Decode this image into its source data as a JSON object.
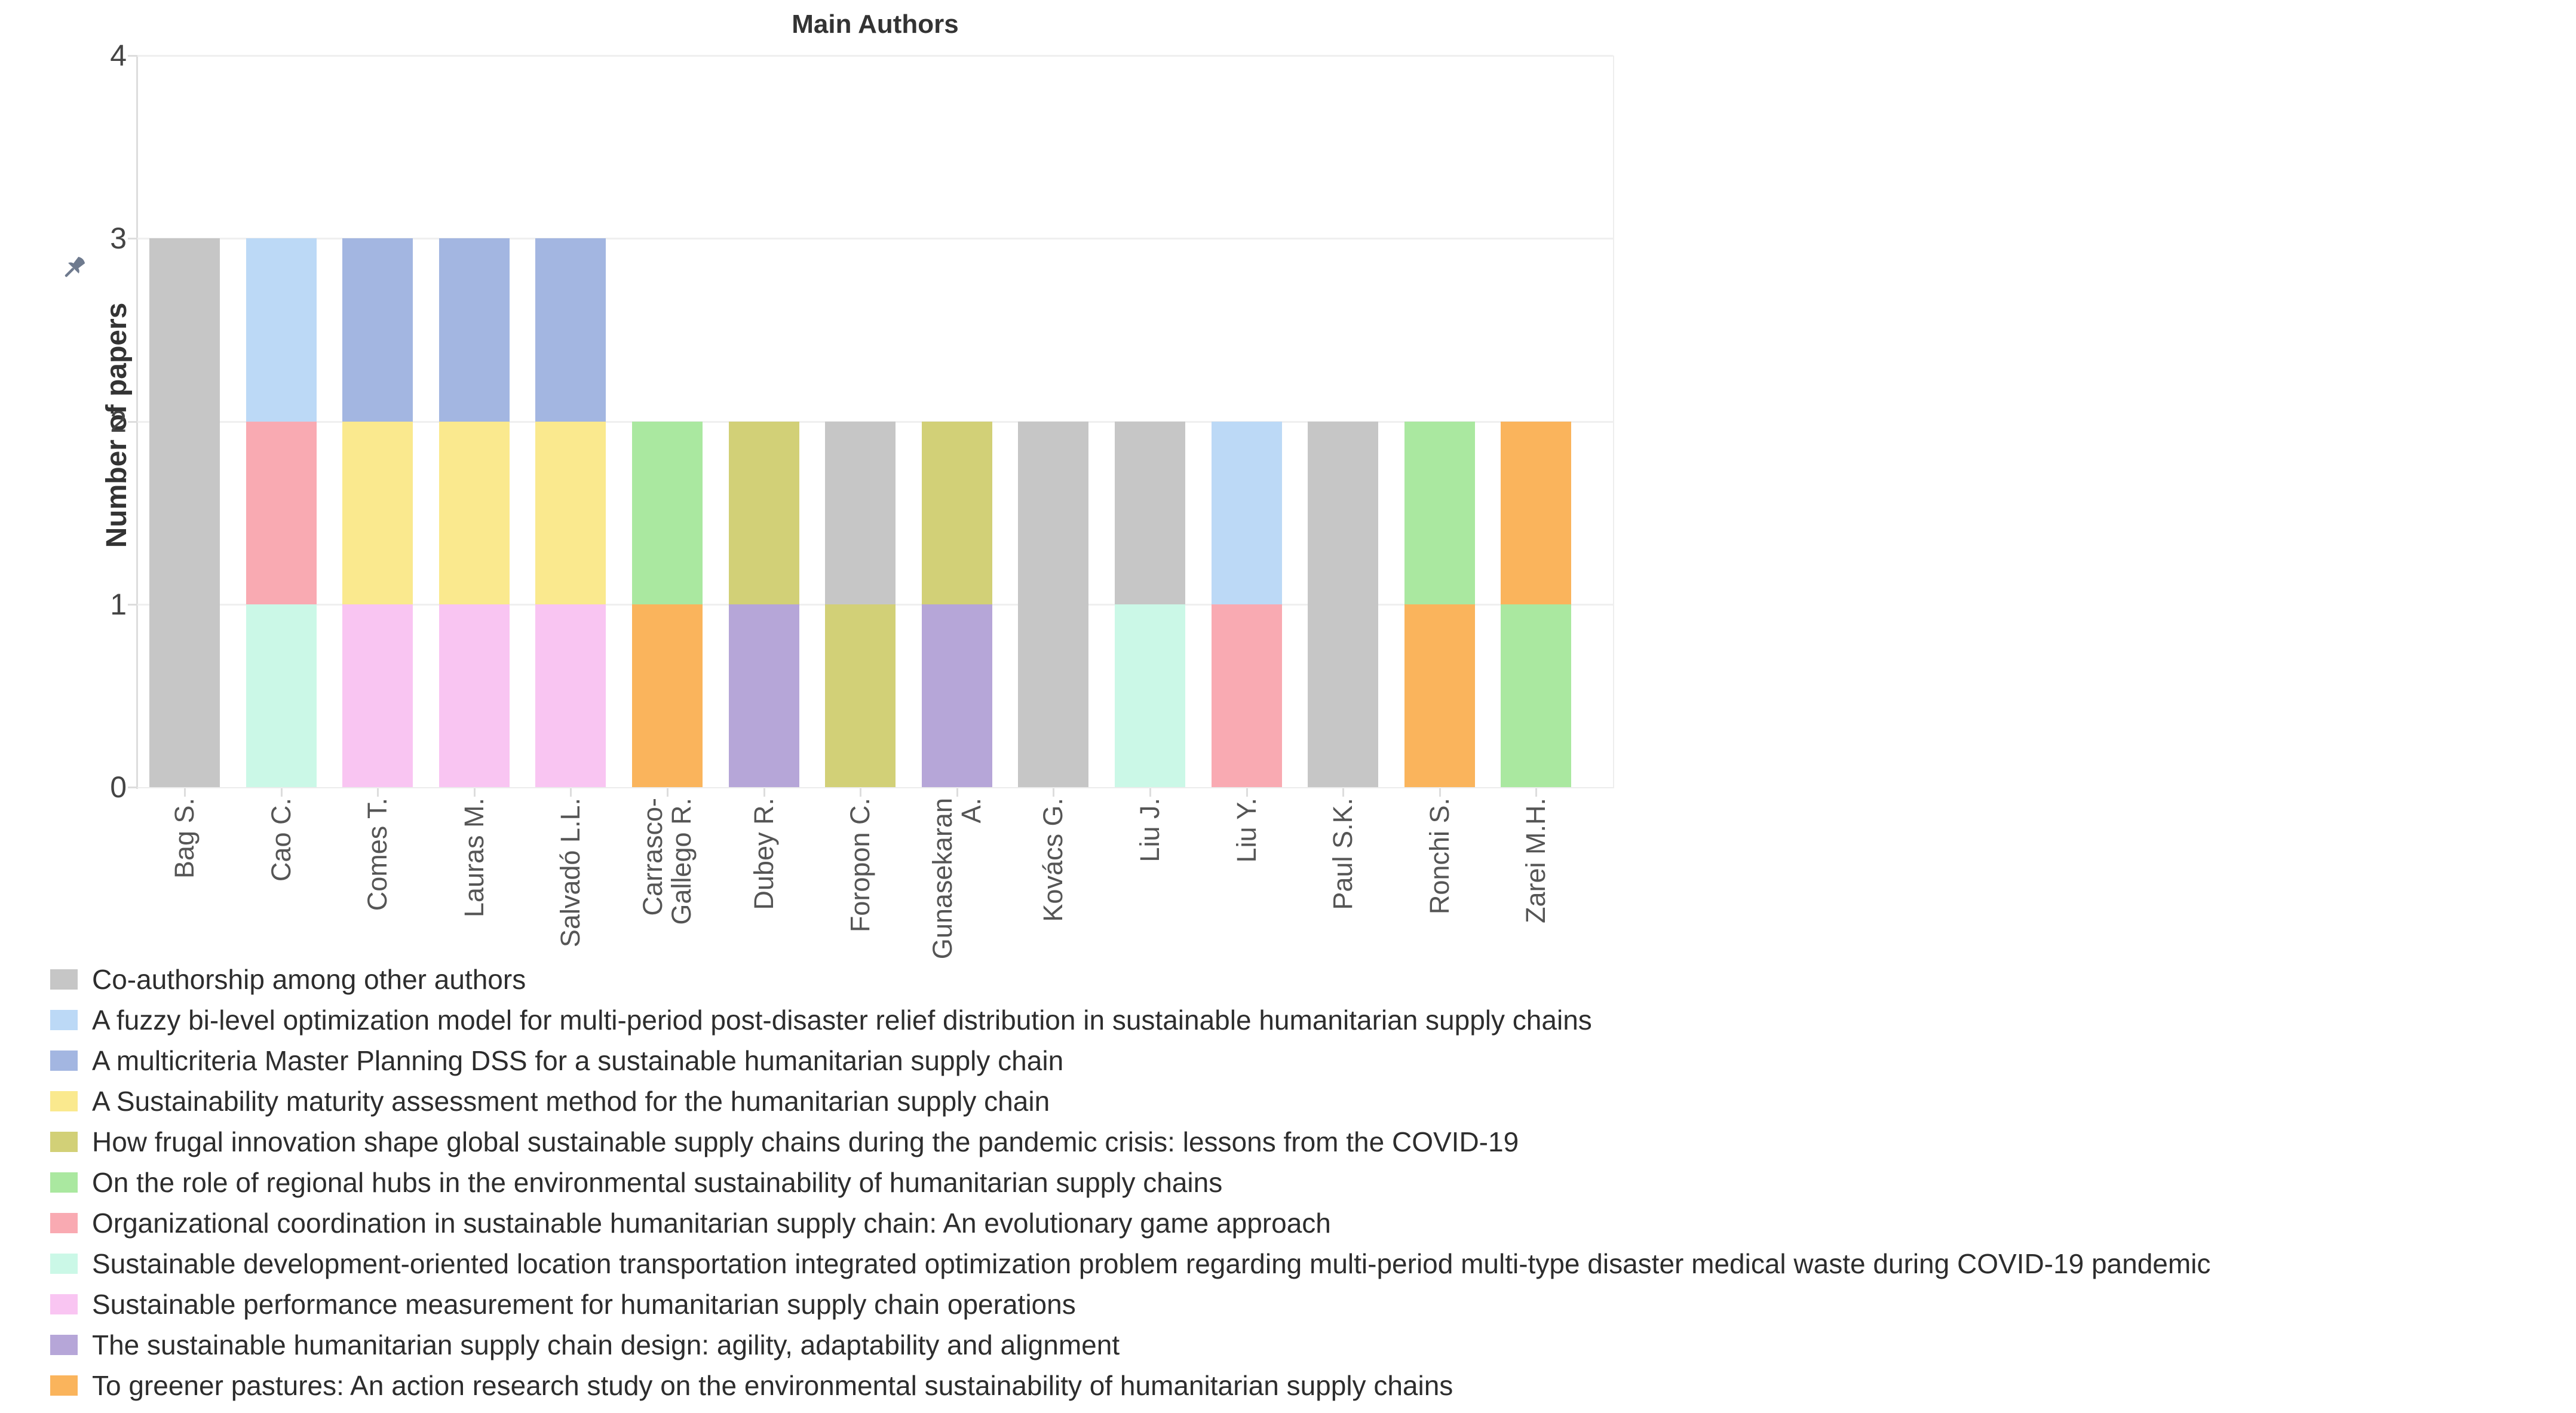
{
  "title": "Main Authors",
  "y_axis": {
    "title": "Number of papers",
    "ticks": [
      "0",
      "1",
      "2",
      "3",
      "4"
    ]
  },
  "icons": {
    "pin_color": "#6e7a8e"
  },
  "papers": [
    {
      "label": "Co-authorship among other authors",
      "color": "#c6c6c6"
    },
    {
      "label": "A fuzzy bi-level optimization model for multi-period post-disaster relief distribution in sustainable humanitarian supply chains",
      "color": "#bcd9f6"
    },
    {
      "label": "A multicriteria Master Planning DSS for a sustainable humanitarian supply chain",
      "color": "#a3b6e1"
    },
    {
      "label": "A Sustainability maturity assessment method for the humanitarian supply chain",
      "color": "#fae98e"
    },
    {
      "label": "How frugal innovation shape global sustainable supply chains during the pandemic crisis: lessons from the COVID-19",
      "color": "#d2d077"
    },
    {
      "label": "On the role of regional hubs in the environmental sustainability of humanitarian supply chains",
      "color": "#aae8a0"
    },
    {
      "label": "Organizational coordination in sustainable humanitarian supply chain: An evolutionary game approach",
      "color": "#f9aab2"
    },
    {
      "label": "Sustainable development-oriented location transportation integrated optimization problem regarding multi-period multi-type disaster medical waste during COVID-19 pandemic",
      "color": "#cbf8e7"
    },
    {
      "label": "Sustainable performance measurement for humanitarian supply chain operations",
      "color": "#f9c5f2"
    },
    {
      "label": "The sustainable humanitarian supply chain design: agility, adaptability and alignment",
      "color": "#b6a6d8"
    },
    {
      "label": "To greener pastures: An action research study on the environmental sustainability of humanitarian supply chains",
      "color": "#fab45c"
    }
  ],
  "authors": [
    {
      "name_lines": [
        "Bag S."
      ],
      "segments_bottom_to_top": [
        0,
        0,
        0
      ]
    },
    {
      "name_lines": [
        "Cao C."
      ],
      "segments_bottom_to_top": [
        7,
        6,
        1
      ]
    },
    {
      "name_lines": [
        "Comes T."
      ],
      "segments_bottom_to_top": [
        8,
        3,
        2
      ]
    },
    {
      "name_lines": [
        "Lauras M."
      ],
      "segments_bottom_to_top": [
        8,
        3,
        2
      ]
    },
    {
      "name_lines": [
        "Salvadó L.L."
      ],
      "segments_bottom_to_top": [
        8,
        3,
        2
      ]
    },
    {
      "name_lines": [
        "Carrasco-",
        "Gallego R."
      ],
      "segments_bottom_to_top": [
        10,
        5
      ]
    },
    {
      "name_lines": [
        "Dubey R."
      ],
      "segments_bottom_to_top": [
        9,
        4
      ]
    },
    {
      "name_lines": [
        "Foropon C."
      ],
      "segments_bottom_to_top": [
        4,
        0
      ]
    },
    {
      "name_lines": [
        "Gunasekaran",
        "A."
      ],
      "segments_bottom_to_top": [
        9,
        4
      ]
    },
    {
      "name_lines": [
        "Kovács G."
      ],
      "segments_bottom_to_top": [
        0,
        0
      ]
    },
    {
      "name_lines": [
        "Liu J."
      ],
      "segments_bottom_to_top": [
        7,
        0
      ]
    },
    {
      "name_lines": [
        "Liu Y."
      ],
      "segments_bottom_to_top": [
        6,
        1
      ]
    },
    {
      "name_lines": [
        "Paul S.K."
      ],
      "segments_bottom_to_top": [
        0,
        0
      ]
    },
    {
      "name_lines": [
        "Ronchi S."
      ],
      "segments_bottom_to_top": [
        10,
        5
      ]
    },
    {
      "name_lines": [
        "Zarei M.H."
      ],
      "segments_bottom_to_top": [
        5,
        10
      ]
    }
  ],
  "chart_data": {
    "type": "bar",
    "stacked": true,
    "title": "Main Authors",
    "xlabel": "",
    "ylabel": "Number of papers",
    "ylim": [
      0,
      4
    ],
    "yticks": [
      0,
      1,
      2,
      3,
      4
    ],
    "grid": true,
    "legend_position": "bottom-left",
    "categories": [
      "Bag S.",
      "Cao C.",
      "Comes T.",
      "Lauras M.",
      "Salvadó L.L.",
      "Carrasco-Gallego R.",
      "Dubey R.",
      "Foropon C.",
      "Gunasekaran A.",
      "Kovács G.",
      "Liu J.",
      "Liu Y.",
      "Paul S.K.",
      "Ronchi S.",
      "Zarei M.H."
    ],
    "series": [
      {
        "name": "Co-authorship among other authors",
        "color": "#c6c6c6",
        "values": [
          3,
          0,
          0,
          0,
          0,
          0,
          0,
          1,
          0,
          2,
          1,
          0,
          2,
          0,
          0
        ]
      },
      {
        "name": "A fuzzy bi-level optimization model for multi-period post-disaster relief distribution in sustainable humanitarian supply chains",
        "color": "#bcd9f6",
        "values": [
          0,
          1,
          0,
          0,
          0,
          0,
          0,
          0,
          0,
          0,
          0,
          1,
          0,
          0,
          0
        ]
      },
      {
        "name": "A multicriteria Master Planning DSS for a sustainable humanitarian supply chain",
        "color": "#a3b6e1",
        "values": [
          0,
          0,
          1,
          1,
          1,
          0,
          0,
          0,
          0,
          0,
          0,
          0,
          0,
          0,
          0
        ]
      },
      {
        "name": "A Sustainability maturity assessment method for the humanitarian supply chain",
        "color": "#fae98e",
        "values": [
          0,
          0,
          1,
          1,
          1,
          0,
          0,
          0,
          0,
          0,
          0,
          0,
          0,
          0,
          0
        ]
      },
      {
        "name": "How frugal innovation shape global sustainable supply chains during the pandemic crisis: lessons from the COVID-19",
        "color": "#d2d077",
        "values": [
          0,
          0,
          0,
          0,
          0,
          0,
          1,
          1,
          1,
          0,
          0,
          0,
          0,
          0,
          0
        ]
      },
      {
        "name": "On the role of regional hubs in the environmental sustainability of humanitarian supply chains",
        "color": "#aae8a0",
        "values": [
          0,
          0,
          0,
          0,
          0,
          1,
          0,
          0,
          0,
          0,
          0,
          0,
          0,
          1,
          1
        ]
      },
      {
        "name": "Organizational coordination in sustainable humanitarian supply chain: An evolutionary game approach",
        "color": "#f9aab2",
        "values": [
          0,
          1,
          0,
          0,
          0,
          0,
          0,
          0,
          0,
          0,
          0,
          1,
          0,
          0,
          0
        ]
      },
      {
        "name": "Sustainable development-oriented location transportation integrated optimization problem regarding multi-period multi-type disaster medical waste during COVID-19 pandemic",
        "color": "#cbf8e7",
        "values": [
          0,
          1,
          0,
          0,
          0,
          0,
          0,
          0,
          0,
          0,
          1,
          0,
          0,
          0,
          0
        ]
      },
      {
        "name": "Sustainable performance measurement for humanitarian supply chain operations",
        "color": "#f9c5f2",
        "values": [
          0,
          0,
          1,
          1,
          1,
          0,
          0,
          0,
          0,
          0,
          0,
          0,
          0,
          0,
          0
        ]
      },
      {
        "name": "The sustainable humanitarian supply chain design: agility, adaptability and alignment",
        "color": "#b6a6d8",
        "values": [
          0,
          0,
          0,
          0,
          0,
          0,
          1,
          0,
          1,
          0,
          0,
          0,
          0,
          0,
          0
        ]
      },
      {
        "name": "To greener pastures: An action research study on the environmental sustainability of humanitarian supply chains",
        "color": "#fab45c",
        "values": [
          0,
          0,
          0,
          0,
          0,
          1,
          0,
          0,
          0,
          0,
          0,
          0,
          0,
          1,
          1
        ]
      }
    ]
  }
}
